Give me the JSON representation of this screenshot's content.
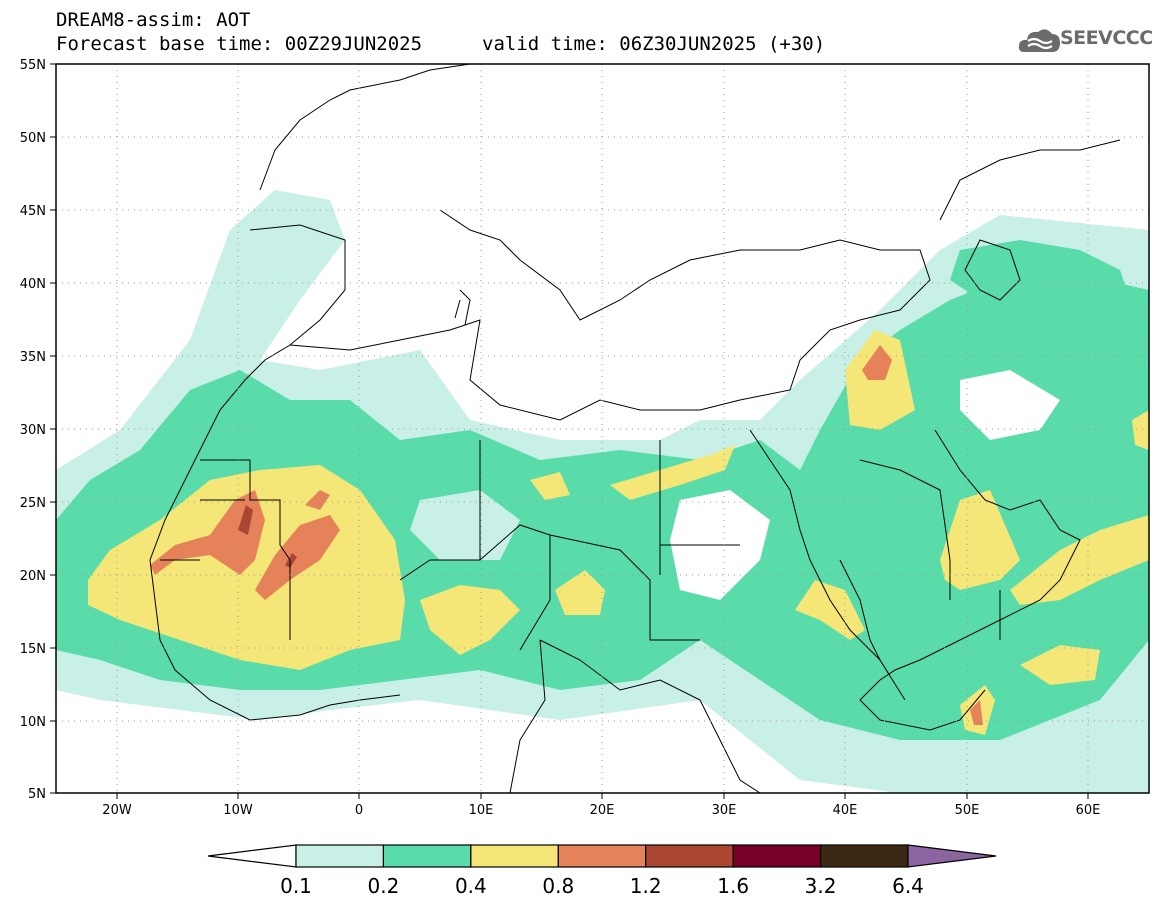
{
  "header": {
    "title": "DREAM8-assim: AOT",
    "base_time": "Forecast base time: 00Z29JUN2025",
    "valid_time": "valid time: 06Z30JUN2025 (+30)",
    "logo_text": "SEEVCCC"
  },
  "map": {
    "projection": "lat-lon",
    "lon_range": [
      -25,
      65
    ],
    "lat_range": [
      5,
      55
    ],
    "lat_labels": [
      "55N",
      "50N",
      "45N",
      "40N",
      "35N",
      "30N",
      "25N",
      "20N",
      "15N",
      "10N",
      "5N"
    ],
    "lon_labels": [
      "20W",
      "10W",
      "0",
      "10E",
      "20E",
      "30E",
      "40E",
      "50E",
      "60E"
    ],
    "grid": "dotted"
  },
  "colorbar": {
    "levels": [
      "0.1",
      "0.2",
      "0.4",
      "0.8",
      "1.2",
      "1.6",
      "3.2",
      "6.4"
    ],
    "colors": [
      "#ffffff",
      "#c8f0e6",
      "#5adcaa",
      "#f5e678",
      "#e6825a",
      "#aa4632",
      "#780028",
      "#3c2814",
      "#8c64a0"
    ]
  }
}
